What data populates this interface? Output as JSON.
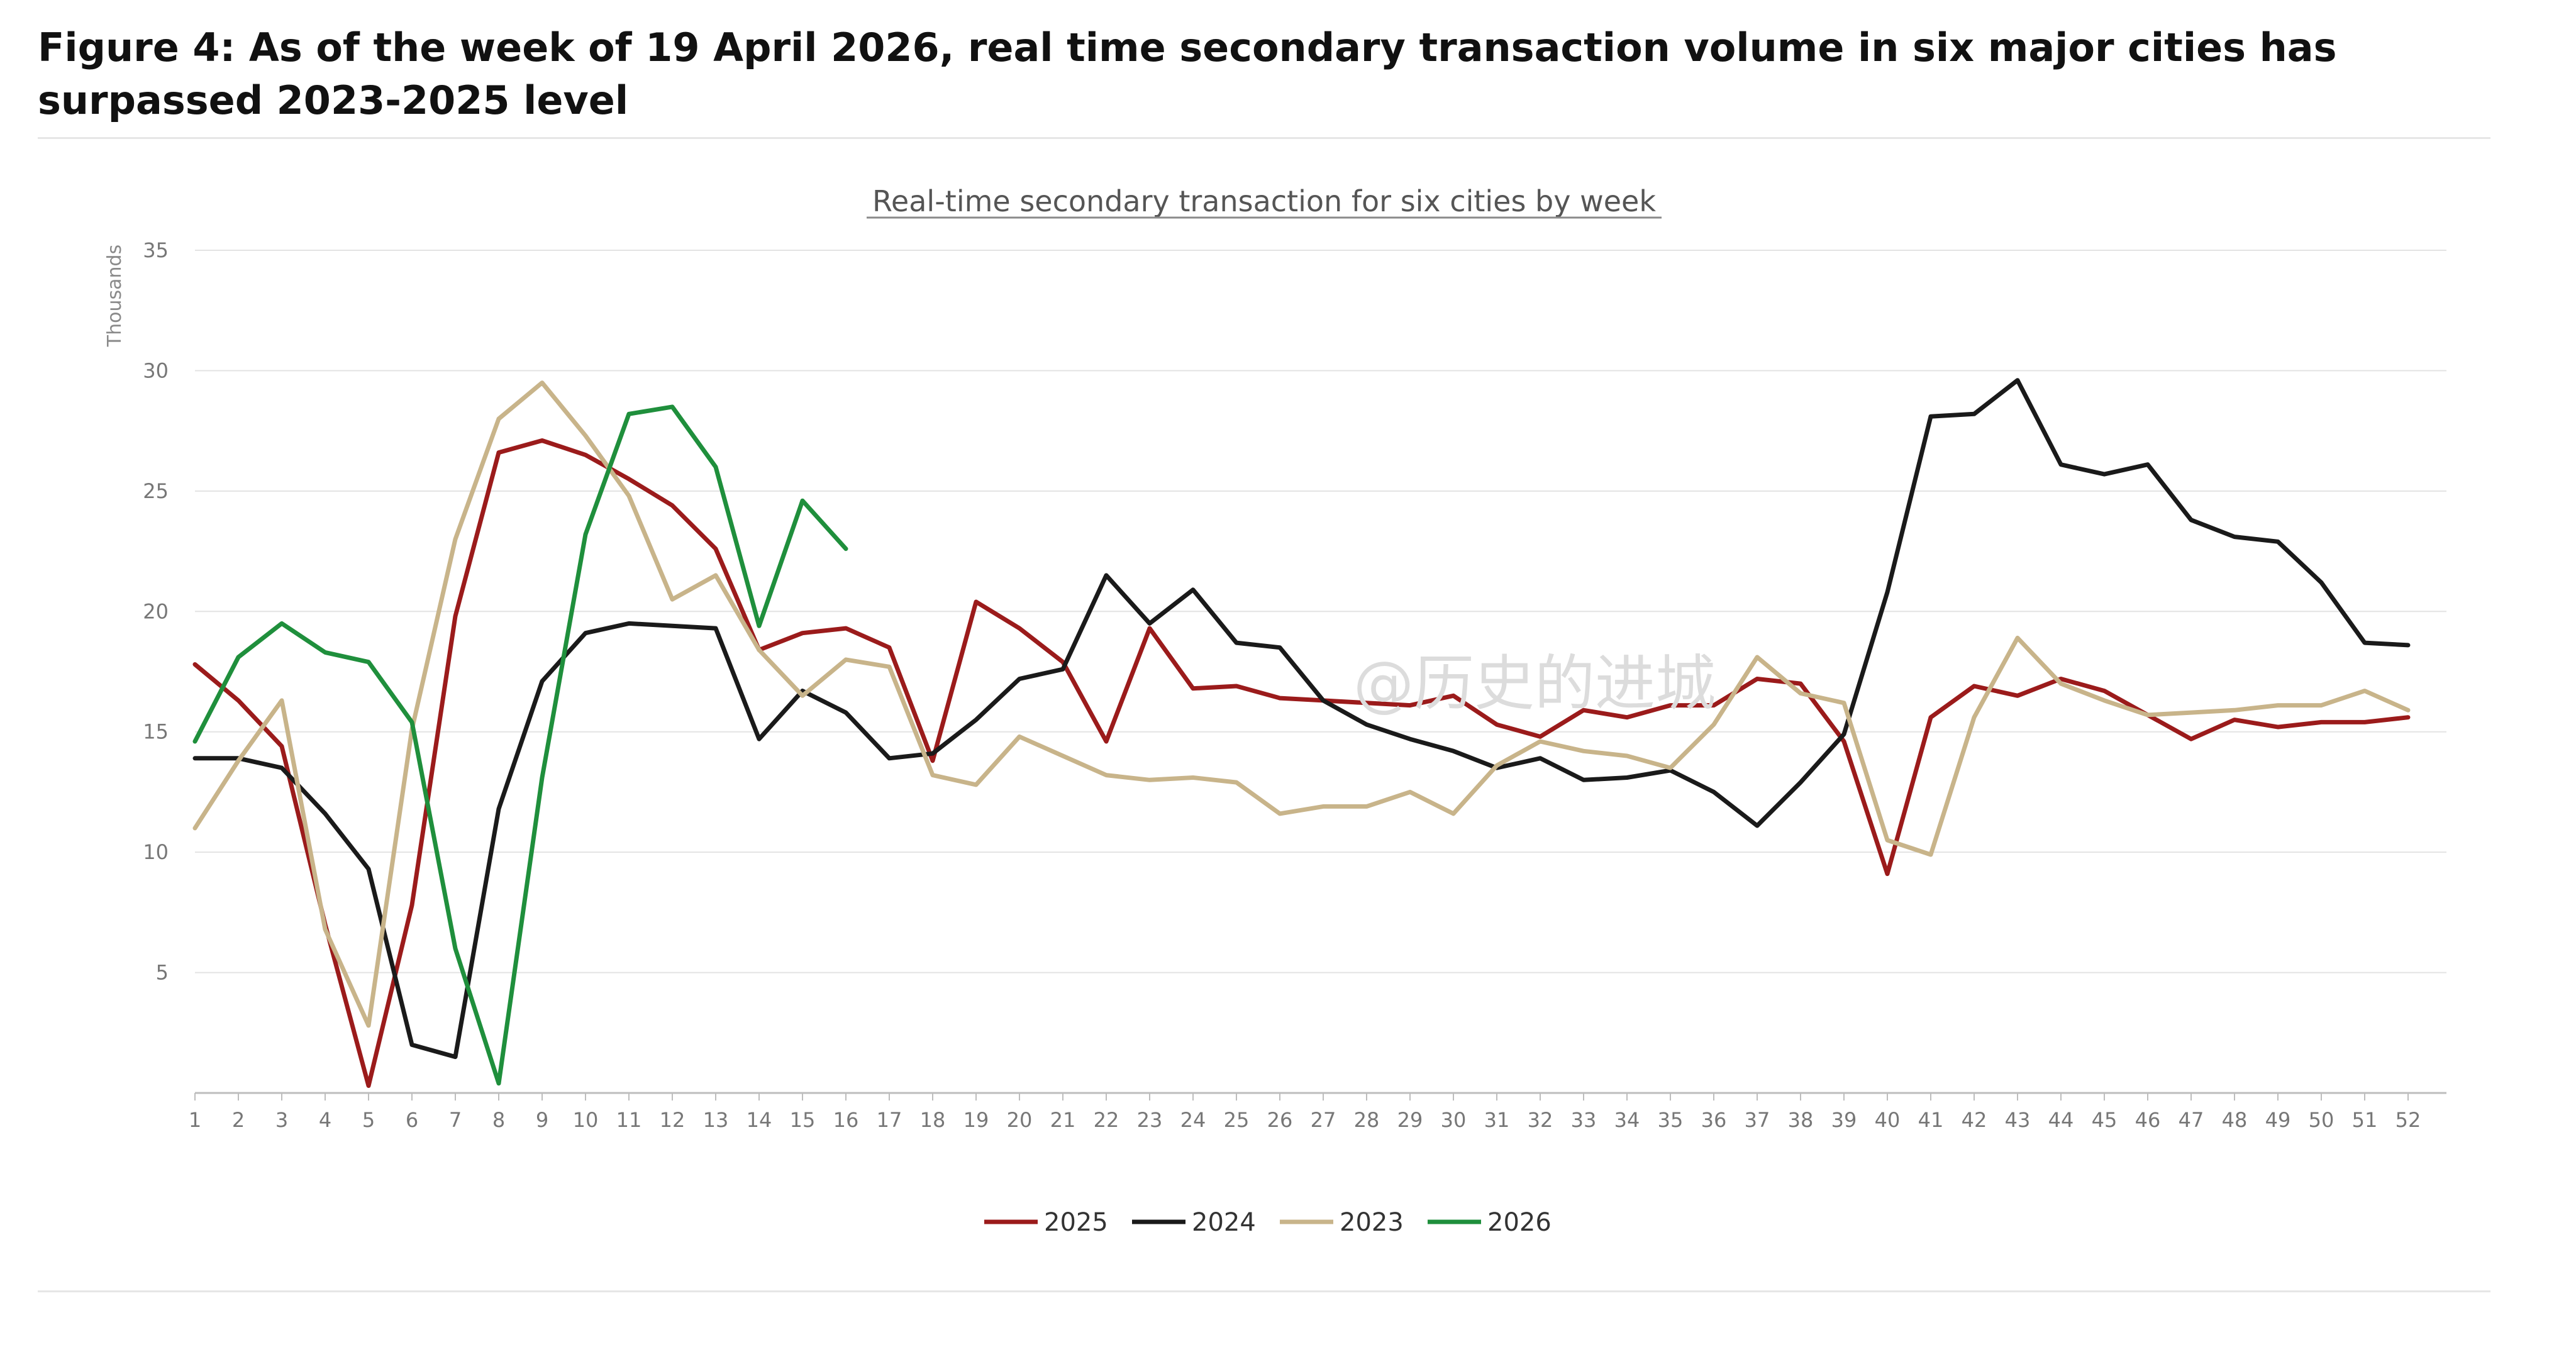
{
  "figure": {
    "title": "Figure 4: As of the week of 19 April 2026, real time secondary transaction volume in six major cities has surpassed 2023-2025 level",
    "watermark": "@历史的进城"
  },
  "colors": {
    "2025": "#9b1b1b",
    "2024": "#1a1a1a",
    "2023": "#c8b48a",
    "2026": "#1f8f3c",
    "grid": "#e3e3e3",
    "axis": "#bdbdbd"
  },
  "chart_data": {
    "type": "line",
    "title": "Real-time secondary transaction for six cities by week",
    "xlabel": "",
    "ylabel": "Thousands",
    "ylim": [
      0,
      35
    ],
    "yticks": [
      5,
      10,
      15,
      20,
      25,
      30,
      35
    ],
    "grid": true,
    "legend_position": "bottom-center",
    "x": [
      1,
      2,
      3,
      4,
      5,
      6,
      7,
      8,
      9,
      10,
      11,
      12,
      13,
      14,
      15,
      16,
      17,
      18,
      19,
      20,
      21,
      22,
      23,
      24,
      25,
      26,
      27,
      28,
      29,
      30,
      31,
      32,
      33,
      34,
      35,
      36,
      37,
      38,
      39,
      40,
      41,
      42,
      43,
      44,
      45,
      46,
      47,
      48,
      49,
      50,
      51,
      52
    ],
    "series": [
      {
        "name": "2025",
        "values": [
          17.8,
          16.3,
          14.4,
          7.0,
          0.3,
          7.8,
          19.8,
          26.6,
          27.1,
          26.5,
          25.5,
          24.4,
          22.6,
          18.4,
          19.1,
          19.3,
          18.5,
          13.8,
          20.4,
          19.3,
          17.9,
          14.6,
          19.3,
          16.8,
          16.9,
          16.4,
          16.3,
          16.2,
          16.1,
          16.5,
          15.3,
          14.8,
          15.9,
          15.6,
          16.1,
          16.1,
          17.2,
          17.0,
          14.6,
          9.1,
          15.6,
          16.9,
          16.5,
          17.2,
          16.7,
          15.7,
          14.7,
          15.5,
          15.2,
          15.4,
          15.4,
          15.6
        ]
      },
      {
        "name": "2024",
        "values": [
          13.9,
          13.9,
          13.5,
          11.6,
          9.3,
          2.0,
          1.5,
          11.8,
          17.1,
          19.1,
          19.5,
          19.4,
          19.3,
          14.7,
          16.7,
          15.8,
          13.9,
          14.1,
          15.5,
          17.2,
          17.6,
          21.5,
          19.5,
          20.9,
          18.7,
          18.5,
          16.3,
          15.3,
          14.7,
          14.2,
          13.5,
          13.9,
          13.0,
          13.1,
          13.4,
          12.5,
          11.1,
          12.9,
          14.9,
          20.8,
          28.1,
          28.2,
          29.6,
          26.1,
          25.7,
          26.1,
          23.8,
          23.1,
          22.9,
          21.2,
          18.7,
          18.6
        ]
      },
      {
        "name": "2023",
        "values": [
          11.0,
          13.8,
          16.3,
          6.8,
          2.8,
          15.1,
          23.0,
          28.0,
          29.5,
          27.3,
          24.8,
          20.5,
          21.5,
          18.4,
          16.5,
          18.0,
          17.7,
          13.2,
          12.8,
          14.8,
          14.0,
          13.2,
          13.0,
          13.1,
          12.9,
          11.6,
          11.9,
          11.9,
          12.5,
          11.6,
          13.6,
          14.6,
          14.2,
          14.0,
          13.5,
          15.3,
          18.1,
          16.6,
          16.2,
          10.5,
          9.9,
          15.6,
          18.9,
          17.0,
          16.3,
          15.7,
          15.8,
          15.9,
          16.1,
          16.1,
          16.7,
          15.9
        ]
      },
      {
        "name": "2026",
        "values": [
          14.6,
          18.1,
          19.5,
          18.3,
          17.9,
          15.4,
          6.0,
          0.4,
          13.1,
          23.2,
          28.2,
          28.5,
          26.0,
          19.4,
          24.6,
          22.6,
          null,
          null,
          null,
          null,
          null,
          null,
          null,
          null,
          null,
          null,
          null,
          null,
          null,
          null,
          null,
          null,
          null,
          null,
          null,
          null,
          null,
          null,
          null,
          null,
          null,
          null,
          null,
          null,
          null,
          null,
          null,
          null,
          null,
          null,
          null,
          null
        ]
      }
    ]
  }
}
